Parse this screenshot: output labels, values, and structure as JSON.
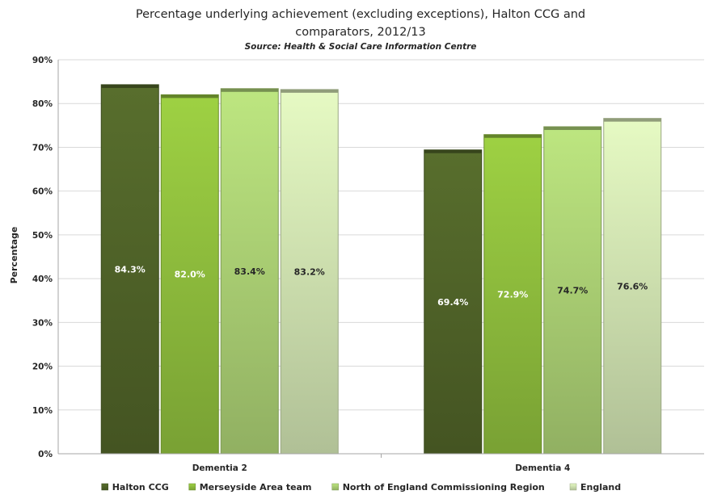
{
  "chart_data": {
    "type": "bar",
    "title_line1": "Percentage underlying achievement (excluding exceptions), Halton CCG and",
    "title_line2": "comparators, 2012/13",
    "subtitle": "Source: Health & Social Care Information Centre",
    "ylabel": "Percentage",
    "xlabel": "",
    "ylim": [
      0,
      90
    ],
    "yticks": [
      0,
      10,
      20,
      30,
      40,
      50,
      60,
      70,
      80,
      90
    ],
    "ytick_labels": [
      "0%",
      "10%",
      "20%",
      "30%",
      "40%",
      "50%",
      "60%",
      "70%",
      "80%",
      "90%"
    ],
    "categories": [
      "Dementia 2",
      "Dementia 4"
    ],
    "series": [
      {
        "name": "Halton CCG",
        "values": [
          84.3,
          69.4
        ],
        "labels": [
          "84.3%",
          "69.4%"
        ],
        "color": "#4f6228",
        "label_color": "#ffffff"
      },
      {
        "name": "Merseyside Area team",
        "values": [
          82.0,
          72.9
        ],
        "labels": [
          "82.0%",
          "72.9%"
        ],
        "color": "#8dbb3c",
        "label_color": "#ffffff"
      },
      {
        "name": "North of England Commissioning Region",
        "values": [
          83.4,
          74.7
        ],
        "labels": [
          "83.4%",
          "74.7%"
        ],
        "color": "#a9cd72",
        "label_color": "#262626"
      },
      {
        "name": "England",
        "values": [
          83.2,
          76.6
        ],
        "labels": [
          "83.2%",
          "76.6%"
        ],
        "color": "#cddfae",
        "label_color": "#262626"
      }
    ],
    "grid": true,
    "legend_position": "bottom"
  }
}
